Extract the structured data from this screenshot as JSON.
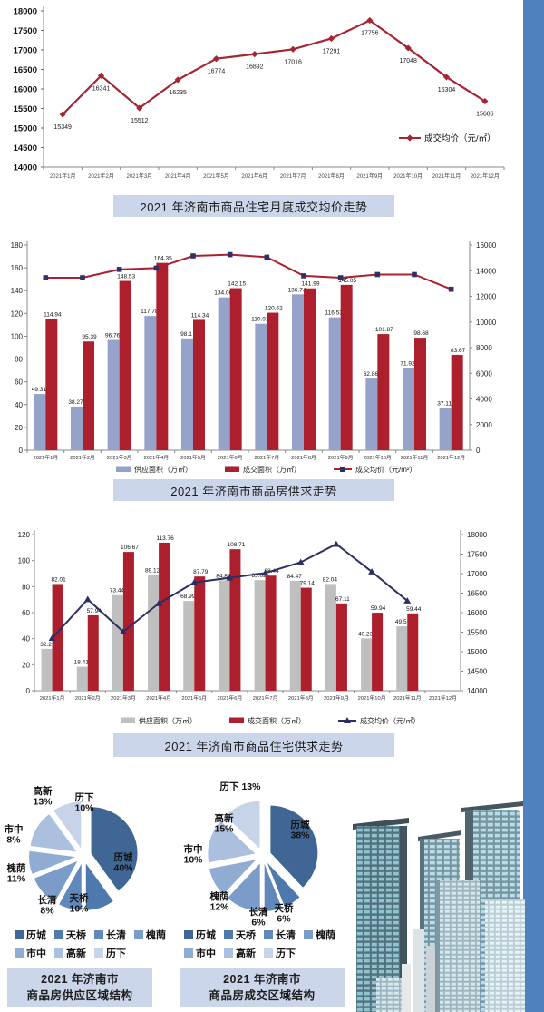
{
  "page": {
    "background": "#ffffff",
    "accent_color": "#4e81bd",
    "title_band_color": "#ccd6ea"
  },
  "chart_data": [
    {
      "id": "monthly-price-trend",
      "type": "line",
      "title": "2021 年济南市商品住宅月度成交均价走势",
      "categories": [
        "2021年1月",
        "2021年2月",
        "2021年3月",
        "2021年4月",
        "2021年5月",
        "2021年6月",
        "2021年7月",
        "2021年8月",
        "2021年9月",
        "2021年10月",
        "2021年11月",
        "2021年12月"
      ],
      "ylim": [
        14000,
        18000
      ],
      "ytick": 500,
      "legend_position": "inside-bottom-right",
      "series": [
        {
          "name": "成交均价（元/㎡）",
          "color": "#a42632",
          "marker": "diamond",
          "values": [
            15349,
            16341,
            15512,
            16235,
            16774,
            16892,
            17016,
            17291,
            17756,
            17048,
            16304,
            15686
          ],
          "labels": [
            "15349",
            "16341",
            "15512",
            "16235",
            "16774",
            "16892",
            "17016",
            "17291",
            "17756",
            "17048",
            "16304",
            "15686"
          ]
        }
      ]
    },
    {
      "id": "commodity-housing-supply-demand",
      "type": "bar+line",
      "title": "2021 年济南市商品房供求走势",
      "categories": [
        "2021年1月",
        "2021年2月",
        "2021年3月",
        "2021年4月",
        "2021年5月",
        "2021年6月",
        "2021年7月",
        "2021年8月",
        "2021年9月",
        "2021年10月",
        "2021年11月",
        "2021年12月"
      ],
      "ylim_left": [
        0,
        180
      ],
      "ytick_left": 20,
      "ylim_right": [
        0,
        16000
      ],
      "ytick_right": 2000,
      "series": [
        {
          "name": "供应面积（万㎡）",
          "type": "bar",
          "color": "#95a3cb",
          "values": [
            49.31,
            38.27,
            96.76,
            117.78,
            98.1,
            134.06,
            110.91,
            136.74,
            116.53,
            62.86,
            71.92,
            37.11
          ],
          "labels": [
            "49.31",
            "38.27",
            "96.76",
            "117.78",
            "98.1",
            "134.06",
            "110.91",
            "136.74",
            "116.53",
            "62.86",
            "71.92",
            "37.11"
          ]
        },
        {
          "name": "成交面积（万㎡）",
          "type": "bar",
          "color": "#ad1f2d",
          "values": [
            114.94,
            95.39,
            148.53,
            164.35,
            114.34,
            142.15,
            120.62,
            141.99,
            145.05,
            101.87,
            98.68,
            83.67
          ],
          "labels": [
            "114.94",
            "95.39",
            "148.53",
            "164.35",
            "114.34",
            "142.15",
            "120.62",
            "141.99",
            "145.05",
            "101.87",
            "98.68",
            "83.67"
          ]
        },
        {
          "name": "成交均价（元/m²）",
          "type": "line",
          "axis": "right",
          "color": "#ad1f2d",
          "marker": "square",
          "marker_color": "#2e3166",
          "estimated": true,
          "values": [
            13450,
            13450,
            14100,
            14200,
            15150,
            15250,
            15050,
            13600,
            13450,
            13700,
            13700,
            12550
          ]
        }
      ]
    },
    {
      "id": "residential-supply-demand",
      "type": "bar+line",
      "title": "2021 年济南市商品住宅供求走势",
      "categories": [
        "2021年1月",
        "2021年2月",
        "2021年3月",
        "2021年4月",
        "2021年5月",
        "2021年6月",
        "2021年7月",
        "2021年8月",
        "2021年9月",
        "2021年10月",
        "2021年11月",
        "2021年12月"
      ],
      "ylim_left": [
        0,
        120
      ],
      "ytick_left": 20,
      "ylim_right": [
        14000,
        18000
      ],
      "ytick_right": 500,
      "series": [
        {
          "name": "供应面积（万㎡）",
          "type": "bar",
          "color": "#bfbfbf",
          "values": [
            32.2,
            18.41,
            73.44,
            89.12,
            68.99,
            84.84,
            85.02,
            84.47,
            82.04,
            40.23,
            49.5,
            null
          ],
          "labels": [
            "32.2",
            "18.41",
            "73.44",
            "89.12",
            "68.99",
            "84.84",
            "85.02",
            "84.47",
            "82.04",
            "40.23",
            "49.5",
            ""
          ]
        },
        {
          "name": "成交面积（万㎡）",
          "type": "bar",
          "color": "#ad1f2d",
          "values": [
            82.01,
            57.94,
            106.67,
            113.76,
            87.79,
            108.71,
            88.44,
            79.14,
            67.11,
            59.94,
            59.44,
            null
          ],
          "labels": [
            "82.01",
            "57.94",
            "106.67",
            "113.76",
            "87.79",
            "108.71",
            "88.44",
            "79.14",
            "67.11",
            "59.94",
            "59.44",
            ""
          ]
        },
        {
          "name": "成交均价（元/㎡）",
          "type": "line",
          "axis": "right",
          "color": "#2b2f63",
          "marker": "triangle",
          "marker_color": "#2b2f63",
          "values": [
            15349,
            16341,
            15512,
            16235,
            16774,
            16892,
            17016,
            17291,
            17756,
            17048,
            16304,
            null
          ]
        }
      ]
    },
    {
      "id": "supply-region-structure",
      "type": "pie",
      "title_line1": "2021 年济南市",
      "title_line2": "商品房供应区域结构",
      "labels": [
        "历城",
        "天桥",
        "长清",
        "槐荫",
        "市中",
        "高新",
        "历下"
      ],
      "values": [
        40,
        10,
        8,
        11,
        8,
        13,
        10
      ],
      "unit": "%",
      "colors": [
        "#3f6695",
        "#4e79ad",
        "#6088ba",
        "#7b9cc9",
        "#90acd3",
        "#abc0df",
        "#c6d3e9"
      ],
      "inside_label_index": 0
    },
    {
      "id": "deal-region-structure",
      "type": "pie",
      "title_line1": "2021 年济南市",
      "title_line2": "商品房成交区域结构",
      "labels": [
        "历城",
        "天桥",
        "长清",
        "槐荫",
        "市中",
        "高新",
        "历下"
      ],
      "values": [
        38,
        6,
        6,
        12,
        10,
        15,
        13
      ],
      "unit": "%",
      "colors": [
        "#3f6695",
        "#4e79ad",
        "#6088ba",
        "#7b9cc9",
        "#90acd3",
        "#abc0df",
        "#c6d3e9"
      ],
      "inside_label_index": 0
    }
  ]
}
